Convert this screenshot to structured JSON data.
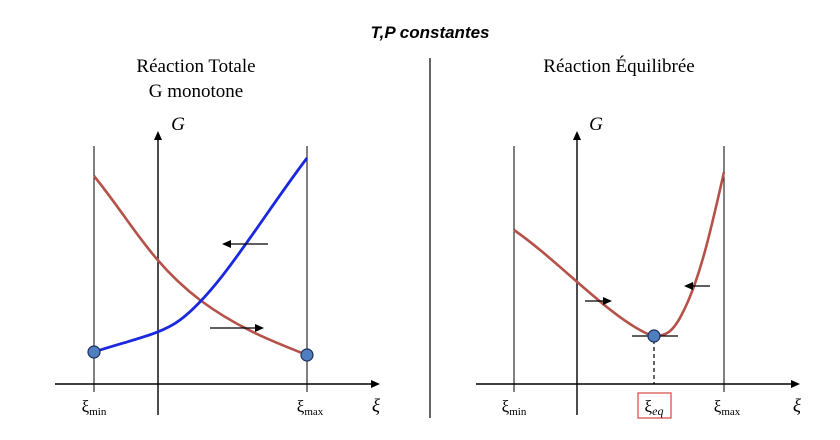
{
  "title": "T,P constantes",
  "left_panel": {
    "title_line1": "Réaction Totale",
    "title_line2": "G monotone",
    "y_axis_label": "G",
    "x_axis_label": "ξ",
    "tick_min": {
      "symbol": "ξ",
      "sub": "min"
    },
    "tick_max": {
      "symbol": "ξ",
      "sub": "max"
    }
  },
  "right_panel": {
    "title": "Réaction Équilibrée",
    "y_axis_label": "G",
    "x_axis_label": "ξ",
    "tick_min": {
      "symbol": "ξ",
      "sub": "min"
    },
    "tick_eq": {
      "symbol": "ξ",
      "sub": "eq"
    },
    "tick_max": {
      "symbol": "ξ",
      "sub": "max"
    }
  },
  "colors": {
    "red_curve": "#b5524a",
    "blue_curve": "#1a28e0",
    "point_fill": "#4f7fc1",
    "eq_box": "#d9534f",
    "axis": "#000000"
  }
}
